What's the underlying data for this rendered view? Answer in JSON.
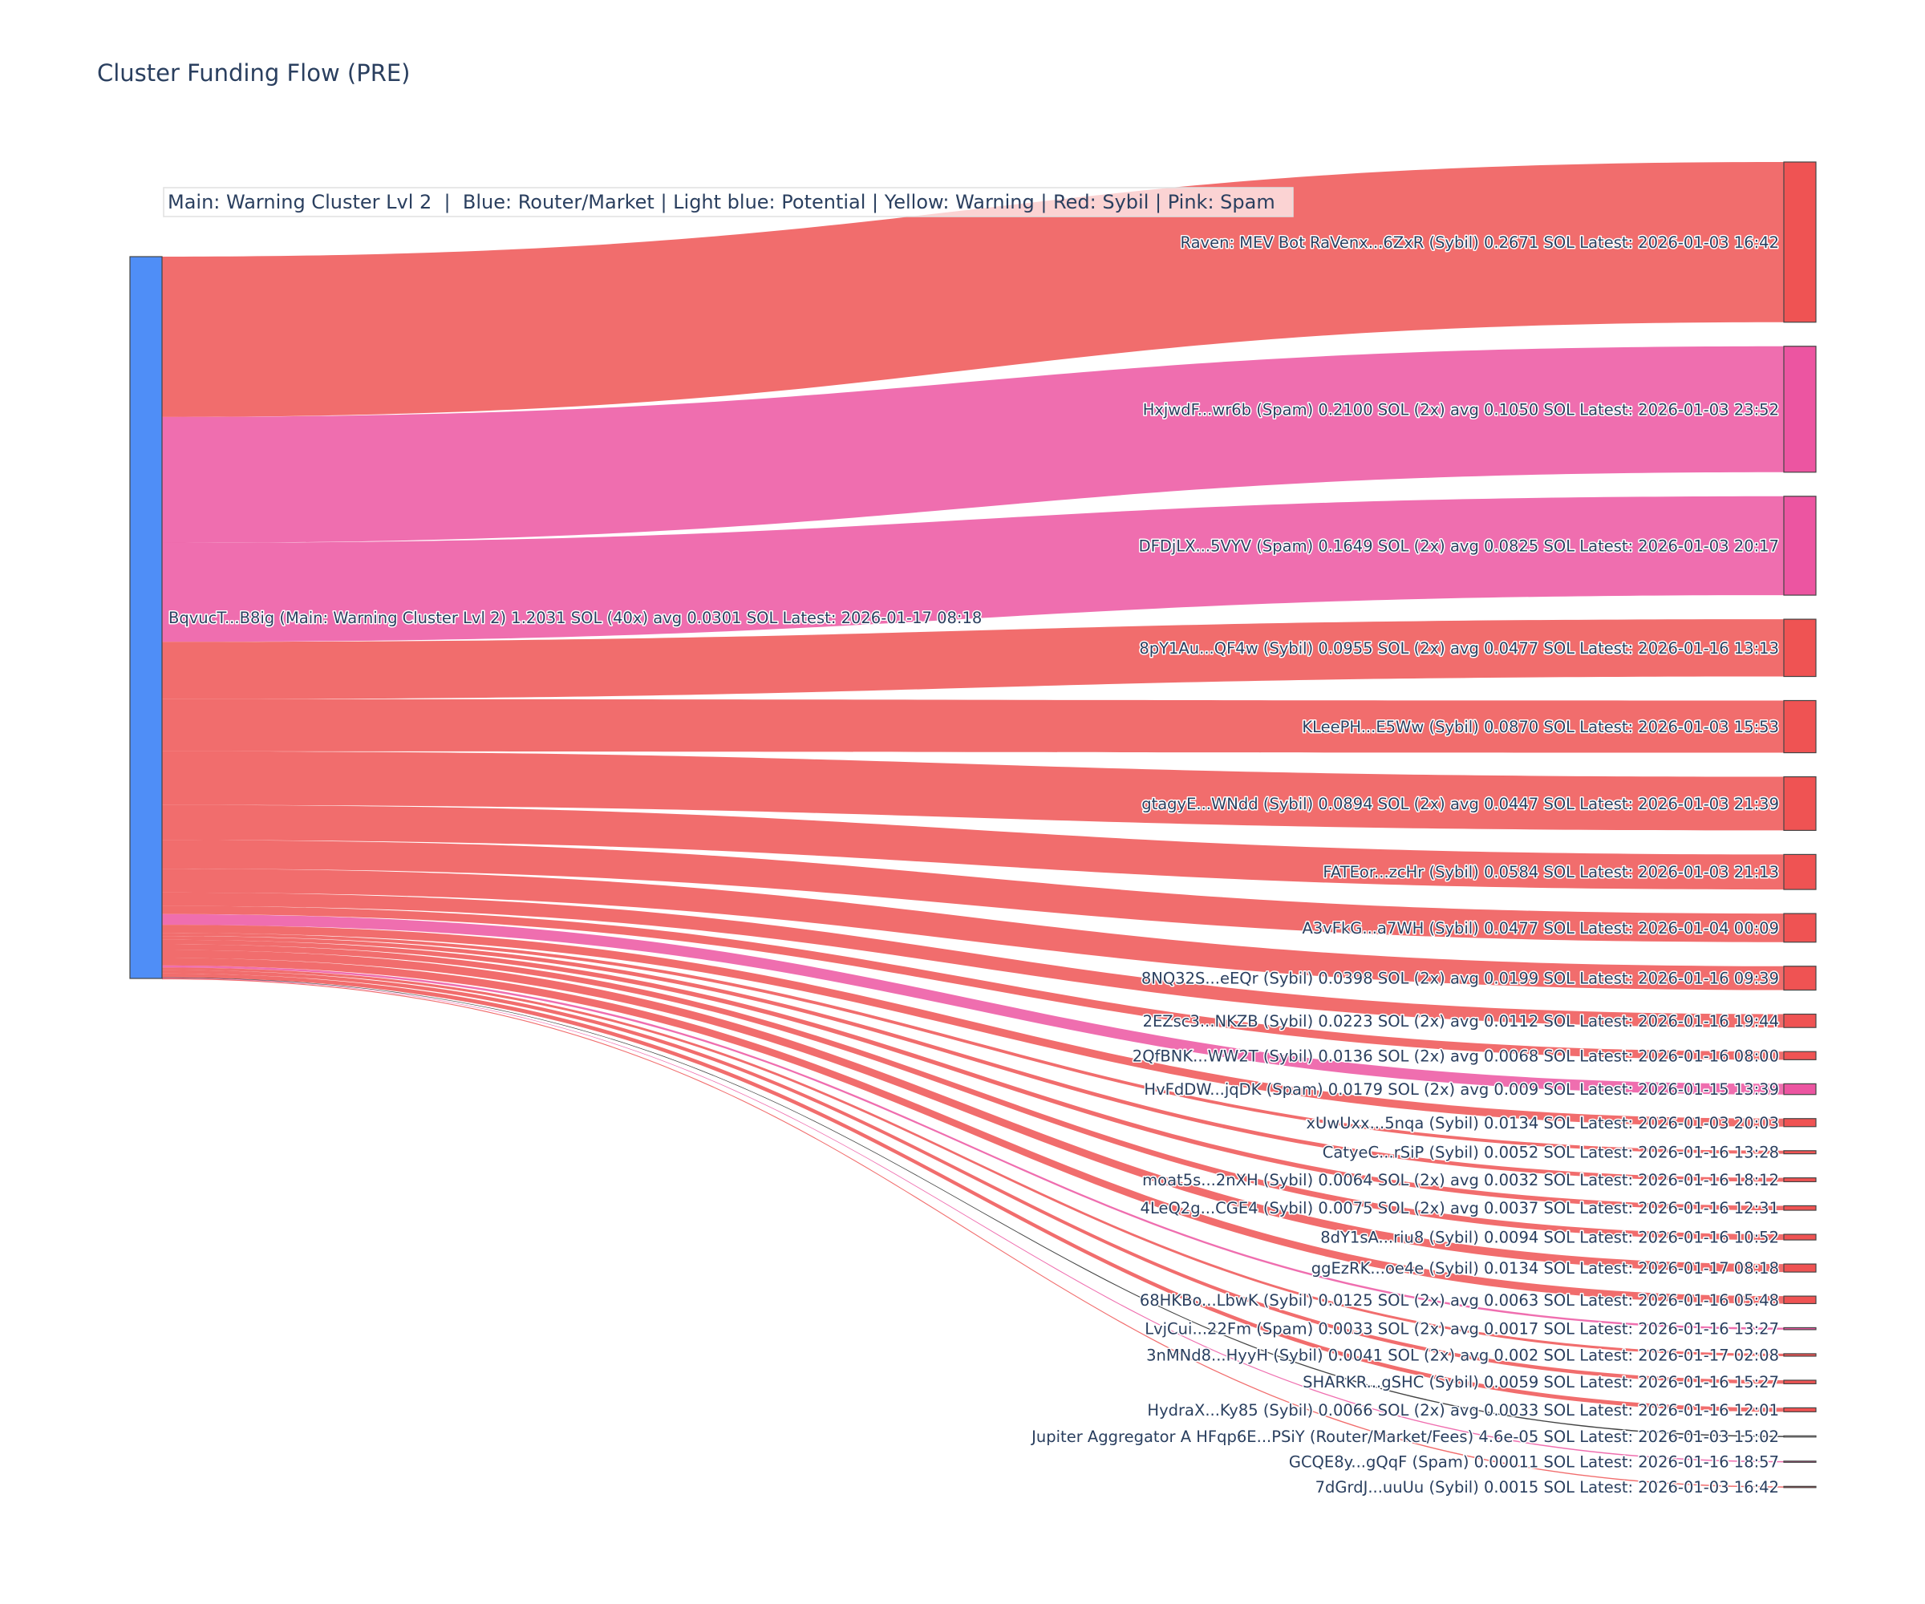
{
  "title": "Cluster Funding Flow (PRE)",
  "legend": "Main: Warning Cluster Lvl 2  |  Blue: Router/Market | Light blue: Potential | Yellow: Warning | Red: Sybil | Pink: Spam",
  "colors": {
    "main": "#4f8ef7",
    "sybil": "#ef5353",
    "spam": "#ec55a1",
    "router": "#222222"
  },
  "chart_data": {
    "type": "sankey",
    "source": {
      "label": "BqvucT...B8ig (Main: Warning Cluster Lvl 2) 1.2031 SOL (40x) avg 0.0301 SOL Latest: 2026-01-17 08:18",
      "value": 1.2031,
      "category": "main"
    },
    "targets": [
      {
        "label": "Raven: MEV Bot RaVenx...6ZxR (Sybil) 0.2671 SOL Latest: 2026-01-03 16:42",
        "value": 0.2671,
        "category": "sybil"
      },
      {
        "label": "HxjwdF...wr6b (Spam) 0.2100 SOL (2x) avg 0.1050 SOL Latest: 2026-01-03 23:52",
        "value": 0.21,
        "category": "spam"
      },
      {
        "label": "DFDjLX...5VYV (Spam) 0.1649 SOL (2x) avg 0.0825 SOL Latest: 2026-01-03 20:17",
        "value": 0.1649,
        "category": "spam"
      },
      {
        "label": "8pY1Au...QF4w (Sybil) 0.0955 SOL (2x) avg 0.0477 SOL Latest: 2026-01-16 13:13",
        "value": 0.0955,
        "category": "sybil"
      },
      {
        "label": "KLeePH...E5Ww (Sybil) 0.0870 SOL Latest: 2026-01-03 15:53",
        "value": 0.087,
        "category": "sybil"
      },
      {
        "label": "gtagyE...WNdd (Sybil) 0.0894 SOL (2x) avg 0.0447 SOL Latest: 2026-01-03 21:39",
        "value": 0.0894,
        "category": "sybil"
      },
      {
        "label": "FATEor...zcHr (Sybil) 0.0584 SOL Latest: 2026-01-03 21:13",
        "value": 0.0584,
        "category": "sybil"
      },
      {
        "label": "A3vFkG...a7WH (Sybil) 0.0477 SOL Latest: 2026-01-04 00:09",
        "value": 0.0477,
        "category": "sybil"
      },
      {
        "label": "8NQ32S...eEQr (Sybil) 0.0398 SOL (2x) avg 0.0199 SOL Latest: 2026-01-16 09:39",
        "value": 0.0398,
        "category": "sybil"
      },
      {
        "label": "2EZsc3...NKZB (Sybil) 0.0223 SOL (2x) avg 0.0112 SOL Latest: 2026-01-16 19:44",
        "value": 0.0223,
        "category": "sybil"
      },
      {
        "label": "2QfBNK...WW2T (Sybil) 0.0136 SOL (2x) avg 0.0068 SOL Latest: 2026-01-16 08:00",
        "value": 0.0136,
        "category": "sybil"
      },
      {
        "label": "HvFdDW...jqDK (Spam) 0.0179 SOL (2x) avg 0.009 SOL Latest: 2026-01-15 13:39",
        "value": 0.0179,
        "category": "spam"
      },
      {
        "label": "xUwUxx...5nqa (Sybil) 0.0134 SOL Latest: 2026-01-03 20:03",
        "value": 0.0134,
        "category": "sybil"
      },
      {
        "label": "CatyeC...rSiP (Sybil) 0.0052 SOL Latest: 2026-01-16 13:28",
        "value": 0.0052,
        "category": "sybil"
      },
      {
        "label": "moat5s...2nXH (Sybil) 0.0064 SOL (2x) avg 0.0032 SOL Latest: 2026-01-16 18:12",
        "value": 0.0064,
        "category": "sybil"
      },
      {
        "label": "4LeQ2g...CGE4 (Sybil) 0.0075 SOL (2x) avg 0.0037 SOL Latest: 2026-01-16 12:31",
        "value": 0.0075,
        "category": "sybil"
      },
      {
        "label": "8dY1sA...riu8 (Sybil) 0.0094 SOL Latest: 2026-01-16 10:52",
        "value": 0.0094,
        "category": "sybil"
      },
      {
        "label": "ggEzRK...oe4e (Sybil) 0.0134 SOL Latest: 2026-01-17 08:18",
        "value": 0.0134,
        "category": "sybil"
      },
      {
        "label": "68HKBo...LbwK (Sybil) 0.0125 SOL (2x) avg 0.0063 SOL Latest: 2026-01-16 05:48",
        "value": 0.0125,
        "category": "sybil"
      },
      {
        "label": "LvjCui...22Fm (Spam) 0.0033 SOL (2x) avg 0.0017 SOL Latest: 2026-01-16 13:27",
        "value": 0.0033,
        "category": "spam"
      },
      {
        "label": "3nMNd8...HyyH (Sybil) 0.0041 SOL (2x) avg 0.002 SOL Latest: 2026-01-17 02:08",
        "value": 0.0041,
        "category": "sybil"
      },
      {
        "label": "SHARKR...gSHC (Sybil) 0.0059 SOL Latest: 2026-01-16 15:27",
        "value": 0.0059,
        "category": "sybil"
      },
      {
        "label": "HydraX...Ky85 (Sybil) 0.0066 SOL (2x) avg 0.0033 SOL Latest: 2026-01-16 12:01",
        "value": 0.0066,
        "category": "sybil"
      },
      {
        "label": "Jupiter Aggregator A HFqp6E...PSiY (Router/Market/Fees) 4.6e-05 SOL Latest: 2026-01-03 15:02",
        "value": 4.6e-05,
        "category": "router"
      },
      {
        "label": "GCQE8y...gQqF (Spam) 0.00011 SOL Latest: 2026-01-16 18:57",
        "value": 0.00011,
        "category": "spam"
      },
      {
        "label": "7dGrdJ...uuUu (Sybil) 0.0015 SOL Latest: 2026-01-03 16:42",
        "value": 0.0015,
        "category": "sybil"
      }
    ]
  }
}
